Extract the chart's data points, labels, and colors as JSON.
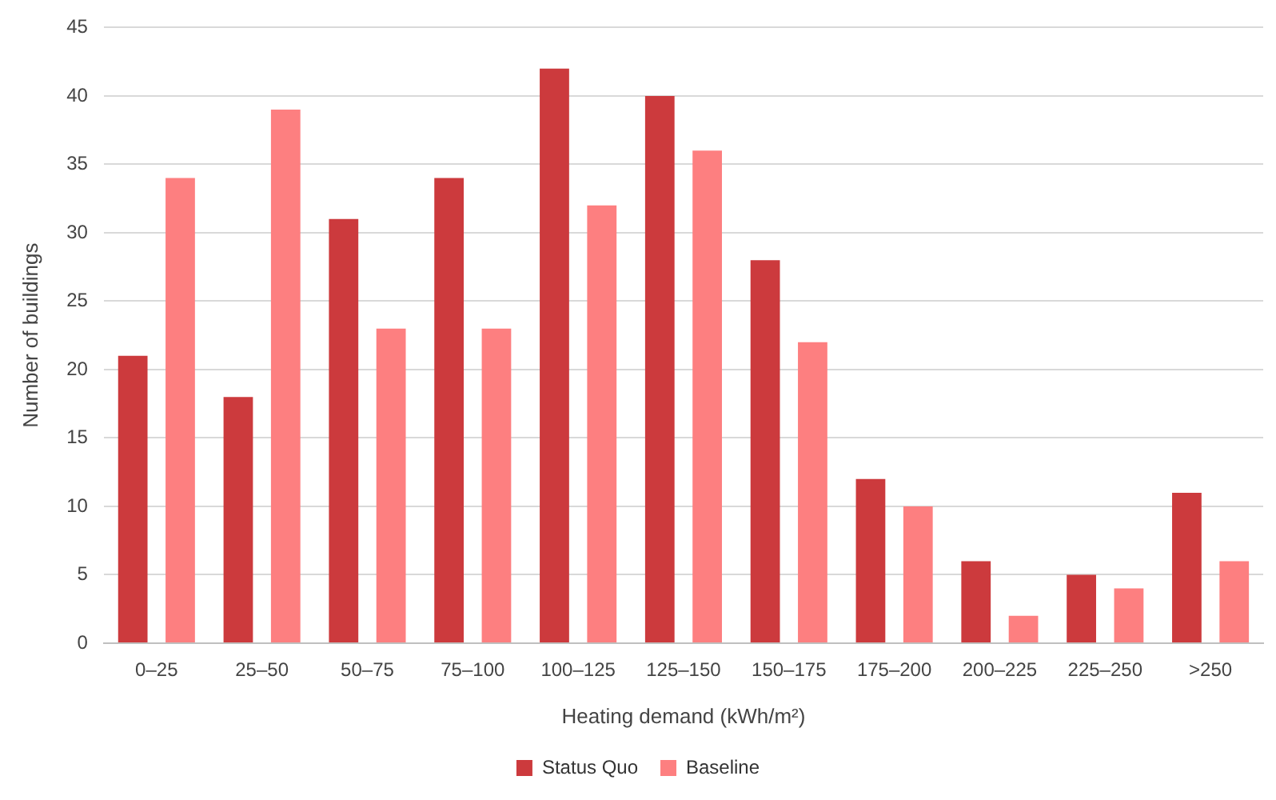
{
  "chart_data": {
    "type": "bar",
    "xlabel": "Heating demand (kWh/m²)",
    "ylabel": "Number of buildings",
    "categories": [
      "0–25",
      "25–50",
      "50–75",
      "75–100",
      "100–125",
      "125–150",
      "150–175",
      "175–200",
      "200–225",
      "225–250",
      ">250"
    ],
    "series": [
      {
        "name": "Status Quo",
        "color": "#cc3a3d",
        "values": [
          21,
          18,
          31,
          34,
          42,
          40,
          28,
          12,
          6,
          5,
          11
        ]
      },
      {
        "name": "Baseline",
        "color": "#fd7f80",
        "values": [
          34,
          39,
          23,
          23,
          32,
          36,
          22,
          10,
          2,
          4,
          6
        ]
      }
    ],
    "ylim": [
      0,
      45
    ],
    "yticks": [
      0,
      5,
      10,
      15,
      20,
      25,
      30,
      35,
      40,
      45
    ],
    "grid": "y",
    "legend": "bottom"
  }
}
